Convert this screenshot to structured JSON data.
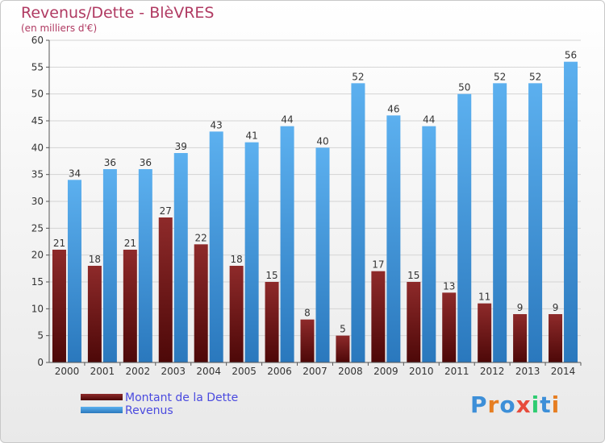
{
  "chart_data": {
    "type": "bar",
    "title": "Revenus/Dette - BlèVRES",
    "subtitle": "(en milliers d'€)",
    "categories": [
      "2000",
      "2001",
      "2002",
      "2003",
      "2004",
      "2005",
      "2006",
      "2007",
      "2008",
      "2009",
      "2010",
      "2011",
      "2012",
      "2013",
      "2014"
    ],
    "series": [
      {
        "name": "Montant de la Dette",
        "color": "#7a1a1a",
        "values": [
          21,
          18,
          21,
          27,
          22,
          18,
          15,
          8,
          5,
          17,
          15,
          13,
          11,
          9,
          9
        ]
      },
      {
        "name": "Revenus",
        "color": "#3d8fd8",
        "values": [
          34,
          36,
          36,
          39,
          43,
          41,
          44,
          40,
          52,
          46,
          44,
          50,
          52,
          52,
          56
        ]
      }
    ],
    "ylim": [
      0,
      60
    ],
    "yticks": [
      0,
      5,
      10,
      15,
      20,
      25,
      30,
      35,
      40,
      45,
      50,
      55,
      60
    ],
    "grid": true,
    "legend_position": "bottom-left"
  },
  "brand": {
    "text": "Proxiti"
  }
}
